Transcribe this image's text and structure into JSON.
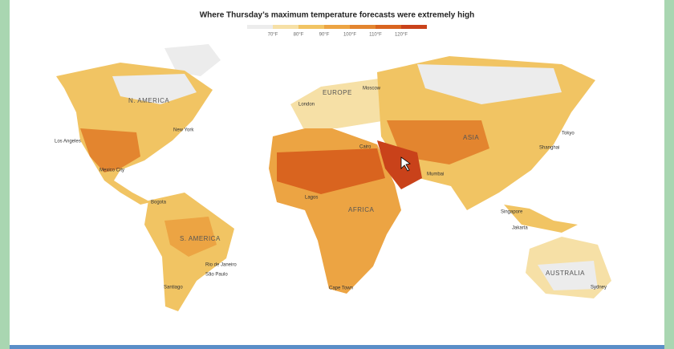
{
  "title": "Where Thursday’s maximum temperature forecasts were extremely high",
  "legend": {
    "colors": [
      "#ececec",
      "#f6e0a6",
      "#f1c463",
      "#eca443",
      "#e3852f",
      "#d9641f",
      "#c9421a"
    ],
    "labels": [
      "70°F",
      "80°F",
      "90°F",
      "100°F",
      "110°F",
      "120°F"
    ]
  },
  "regions": [
    "N. AMERICA",
    "EUROPE",
    "ASIA",
    "AFRICA",
    "S. AMERICA",
    "AUSTRALIA"
  ],
  "cities": [
    "Los Angeles",
    "New York",
    "Mexico City",
    "Bogota",
    "London",
    "Moscow",
    "Cairo",
    "Mumbai",
    "Shanghai",
    "Tokyo",
    "Singapore",
    "Jakarta",
    "Lagos",
    "Cape Town",
    "Rio de Janeiro",
    "São Paulo",
    "Santiago",
    "Sydney"
  ]
}
